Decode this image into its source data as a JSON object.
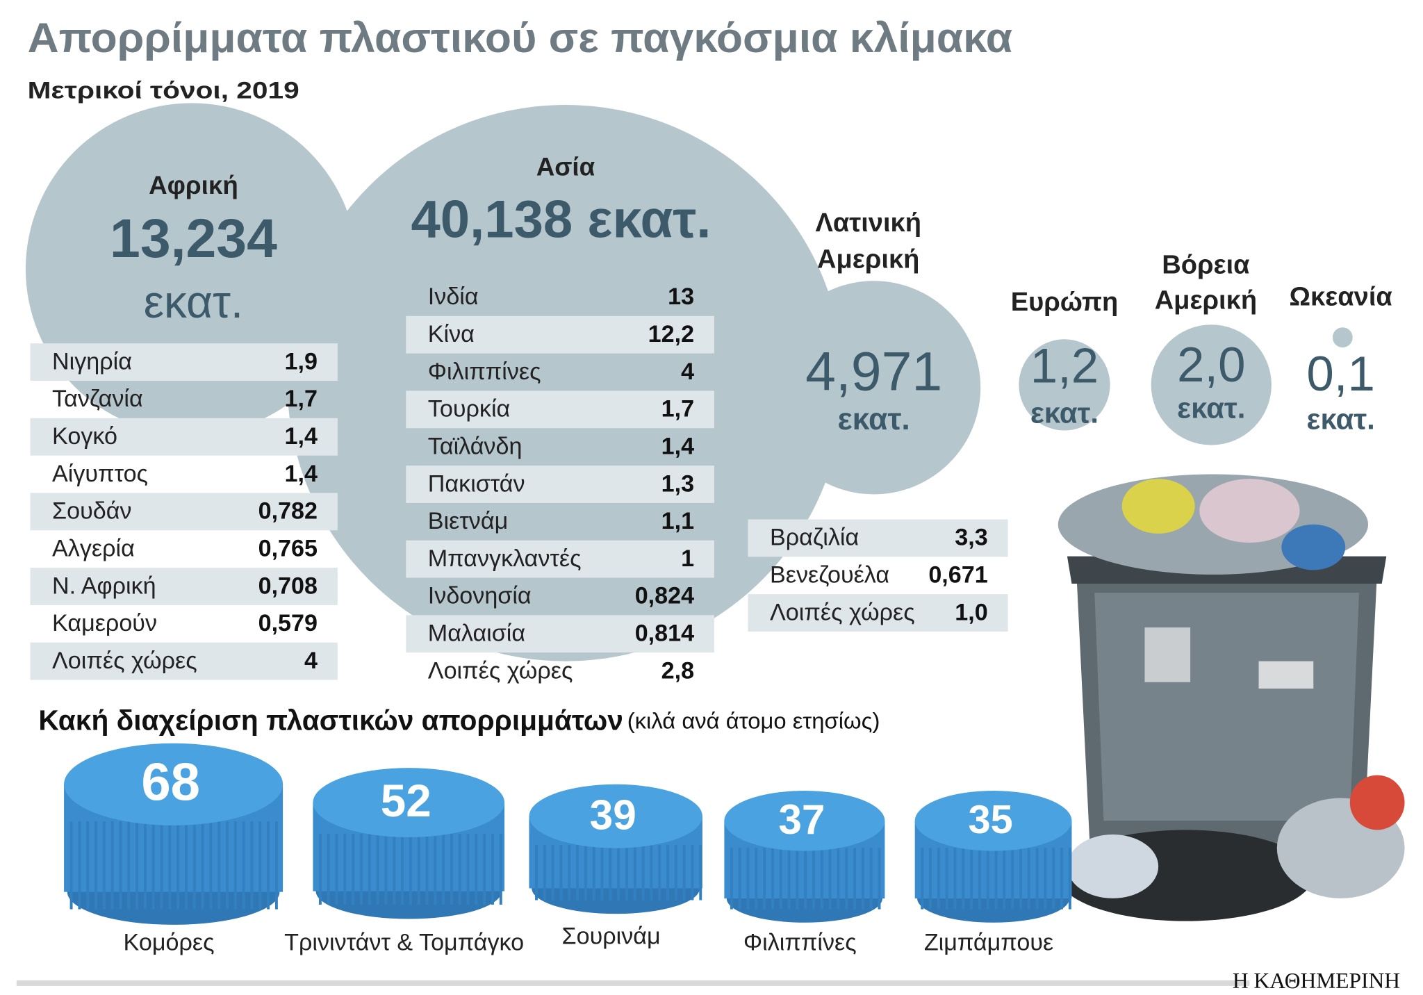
{
  "header": {
    "title": "Απορρίμματα πλαστικού σε παγκόσμια κλίμακα",
    "subtitle": "Μετρικοί τόνοι, 2019"
  },
  "regions": [
    {
      "name": [
        "Αφρική"
      ],
      "value": "13,234",
      "unit": "εκατ.",
      "countries": [
        [
          "Νιγηρία",
          "1,9"
        ],
        [
          "Τανζανία",
          "1,7"
        ],
        [
          "Κογκό",
          "1,4"
        ],
        [
          "Αίγυπτος",
          "1,4"
        ],
        [
          "Σουδάν",
          "0,782"
        ],
        [
          "Αλγερία",
          "0,765"
        ],
        [
          "Ν. Αφρική",
          "0,708"
        ],
        [
          "Καμερούν",
          "0,579"
        ],
        [
          "Λοιπές χώρες",
          "4"
        ]
      ]
    },
    {
      "name": [
        "Ασία"
      ],
      "value": "40,138",
      "unit": "εκατ.",
      "countries": [
        [
          "Ινδία",
          "13"
        ],
        [
          "Κίνα",
          "12,2"
        ],
        [
          "Φιλιππίνες",
          "4"
        ],
        [
          "Τουρκία",
          "1,7"
        ],
        [
          "Ταϊλάνδη",
          "1,4"
        ],
        [
          "Πακιστάν",
          "1,3"
        ],
        [
          "Βιετνάμ",
          "1,1"
        ],
        [
          "Μπανγκλαντές",
          "1"
        ],
        [
          "Ινδονησία",
          "0,824"
        ],
        [
          "Μαλαισία",
          "0,814"
        ],
        [
          "Λοιπές χώρες",
          "2,8"
        ]
      ]
    },
    {
      "name": [
        "Λατινική",
        "Αμερική"
      ],
      "value": "4,971",
      "unit": "εκατ.",
      "countries": [
        [
          "Βραζιλία",
          "3,3"
        ],
        [
          "Βενεζουέλα",
          "0,671"
        ],
        [
          "Λοιπές χώρες",
          "1,0"
        ]
      ]
    },
    {
      "name": [
        "Ευρώπη"
      ],
      "value": "1,2",
      "unit": "εκατ."
    },
    {
      "name": [
        "Βόρεια",
        "Αμερική"
      ],
      "value": "2,0",
      "unit": "εκατ."
    },
    {
      "name": [
        "Ωκεανία"
      ],
      "value": "0,1",
      "unit": "εκατ."
    }
  ],
  "mismanaged": {
    "title": "Κακή διαχείριση πλαστικών απορριμμάτων",
    "note": "(κιλά ανά άτομο ετησίως)",
    "items": [
      {
        "value": "68",
        "label": "Κομόρες"
      },
      {
        "value": "52",
        "label": "Τρινιντάντ & Τομπάγκο"
      },
      {
        "value": "39",
        "label": "Σουρινάμ"
      },
      {
        "value": "37",
        "label": "Φιλιππίνες"
      },
      {
        "value": "35",
        "label": "Ζιμπάμπουε"
      }
    ]
  },
  "footer": {
    "brand": "Η ΚΑΘΗΜΕΡΙΝΗ"
  }
}
